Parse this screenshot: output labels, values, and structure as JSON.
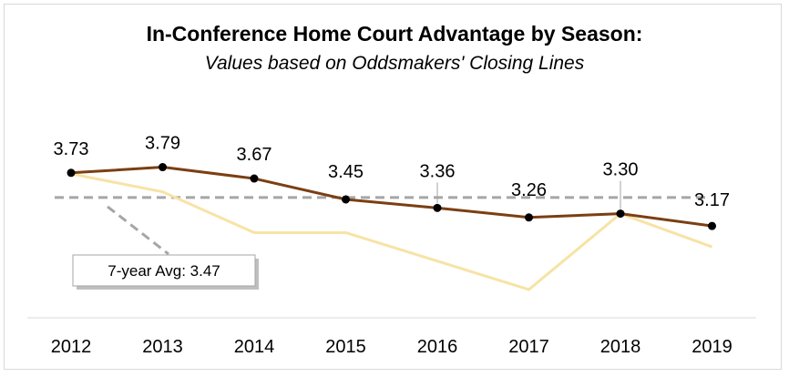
{
  "chart_data": {
    "type": "line",
    "title": "In-Conference Home Court Advantage by Season:",
    "subtitle": "Values based on Oddsmakers' Closing Lines",
    "categories": [
      "2012",
      "2013",
      "2014",
      "2015",
      "2016",
      "2017",
      "2018",
      "2019"
    ],
    "series": [
      {
        "values": [
          3.73,
          3.79,
          3.67,
          3.45,
          3.36,
          3.26,
          3.3,
          3.17
        ],
        "color": "#7b3f12",
        "data_labels": [
          "3.73",
          "3.79",
          "3.67",
          "3.45",
          "3.36",
          "3.26",
          "3.30",
          "3.17"
        ]
      },
      {
        "values": [
          3.72,
          3.53,
          3.1,
          3.1,
          2.8,
          2.5,
          3.3,
          2.95
        ],
        "color": "#f7e3a5"
      }
    ],
    "reference_line": {
      "value": 3.47,
      "label": "7-year Avg: 3.47",
      "color": "#a6a6a6"
    },
    "ylim": [
      2.25,
      4.4
    ],
    "grid": false,
    "legend": "none"
  }
}
